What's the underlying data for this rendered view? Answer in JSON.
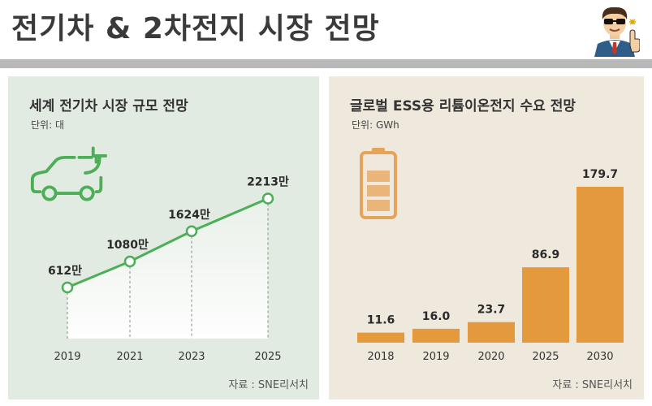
{
  "header": {
    "title": "전기차 & 2차전지 시장 전망"
  },
  "colors": {
    "green": "#4caf58",
    "orange": "#e49a3c",
    "left_panel_bg": "#e2ebe2",
    "right_panel_bg": "#efe8dd"
  },
  "icons": [
    "presenter-avatar-icon",
    "electric-car-plug-icon",
    "battery-icon"
  ],
  "chart_data": [
    {
      "type": "line",
      "title": "세계 전기차 시장 규모 전망",
      "unit": "단위: 대",
      "source": "자료 : SNE리서치",
      "categories": [
        "2019",
        "2021",
        "2023",
        "2025"
      ],
      "values": [
        612,
        1080,
        1624,
        2213
      ],
      "labels": [
        "612만",
        "1080만",
        "1624만",
        "2213만"
      ],
      "color": "#4caf58",
      "grid": false
    },
    {
      "type": "bar",
      "title": "글로벌 ESS용 리튬이온전지 수요 전망",
      "unit": "단위: GWh",
      "source": "자료 : SNE리서치",
      "categories": [
        "2018",
        "2019",
        "2020",
        "2025",
        "2030"
      ],
      "values": [
        11.6,
        16.0,
        23.7,
        86.9,
        179.7
      ],
      "labels": [
        "11.6",
        "16.0",
        "23.7",
        "86.9",
        "179.7"
      ],
      "color": "#e49a3c",
      "grid": false
    }
  ]
}
